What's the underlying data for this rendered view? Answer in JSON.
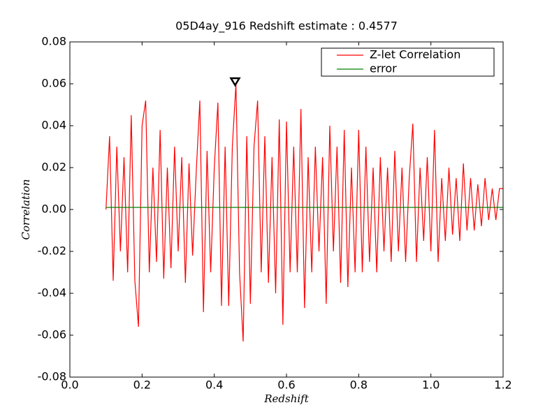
{
  "chart_data": {
    "type": "line",
    "title": "05D4ay_916 Redshift estimate : 0.4577",
    "xlabel": "Redshift",
    "ylabel": "Correlation",
    "xlim": [
      0.0,
      1.2
    ],
    "xticks": [
      {
        "value": 0,
        "label": "0.0"
      },
      0.2,
      0.4,
      0.6,
      0.8,
      {
        "value": 1,
        "label": "1.0"
      },
      1.2
    ],
    "ylim": [
      -0.08,
      0.08
    ],
    "yticks": [
      -0.08,
      -0.06,
      -0.04,
      -0.02,
      {
        "value": 0,
        "label": "0.00"
      },
      0.02,
      0.04,
      0.06,
      0.08
    ],
    "legend": "upper right",
    "series": [
      {
        "name": "Z-let Correlation",
        "color": "#ff0000",
        "x": [
          0.1,
          0.11,
          0.12,
          0.13,
          0.14,
          0.15,
          0.16,
          0.17,
          0.18,
          0.19,
          0.2,
          0.21,
          0.22,
          0.23,
          0.24,
          0.25,
          0.26,
          0.27,
          0.28,
          0.29,
          0.3,
          0.31,
          0.32,
          0.33,
          0.34,
          0.35,
          0.36,
          0.37,
          0.38,
          0.39,
          0.4,
          0.41,
          0.42,
          0.43,
          0.44,
          0.45,
          0.46,
          0.47,
          0.48,
          0.49,
          0.5,
          0.51,
          0.52,
          0.53,
          0.54,
          0.55,
          0.56,
          0.57,
          0.58,
          0.59,
          0.6,
          0.61,
          0.62,
          0.63,
          0.64,
          0.65,
          0.66,
          0.67,
          0.68,
          0.69,
          0.7,
          0.71,
          0.72,
          0.73,
          0.74,
          0.75,
          0.76,
          0.77,
          0.78,
          0.79,
          0.8,
          0.81,
          0.82,
          0.83,
          0.84,
          0.85,
          0.86,
          0.87,
          0.88,
          0.89,
          0.9,
          0.91,
          0.92,
          0.93,
          0.94,
          0.95,
          0.96,
          0.97,
          0.98,
          0.99,
          1.0,
          1.01,
          1.02,
          1.03,
          1.04,
          1.05,
          1.06,
          1.07,
          1.08,
          1.09,
          1.1,
          1.11,
          1.12,
          1.13,
          1.14,
          1.15,
          1.16,
          1.17,
          1.18,
          1.19,
          1.2
        ],
        "values": [
          0.0,
          0.035,
          -0.034,
          0.03,
          -0.02,
          0.025,
          -0.03,
          0.045,
          -0.034,
          -0.056,
          0.04,
          0.052,
          -0.03,
          0.02,
          -0.025,
          0.038,
          -0.033,
          0.02,
          -0.028,
          0.03,
          -0.02,
          0.025,
          -0.035,
          0.022,
          -0.022,
          0.018,
          0.052,
          -0.049,
          0.028,
          -0.03,
          0.02,
          0.051,
          -0.046,
          0.03,
          -0.046,
          0.03,
          0.06,
          -0.03,
          -0.063,
          0.035,
          -0.045,
          0.03,
          0.052,
          -0.03,
          0.035,
          -0.035,
          0.025,
          -0.04,
          0.043,
          -0.055,
          0.042,
          -0.03,
          0.03,
          -0.03,
          0.048,
          -0.047,
          0.025,
          -0.03,
          0.03,
          -0.02,
          0.025,
          -0.045,
          0.04,
          -0.02,
          0.03,
          -0.035,
          0.038,
          -0.037,
          0.02,
          -0.03,
          0.038,
          -0.03,
          0.03,
          -0.025,
          0.02,
          -0.03,
          0.025,
          -0.02,
          0.02,
          -0.025,
          0.028,
          -0.02,
          0.02,
          -0.025,
          0.015,
          0.041,
          -0.025,
          0.02,
          -0.015,
          0.025,
          -0.02,
          0.038,
          -0.025,
          0.015,
          -0.015,
          0.02,
          -0.012,
          0.015,
          -0.015,
          0.022,
          -0.01,
          0.015,
          -0.01,
          0.012,
          -0.008,
          0.015,
          -0.005,
          0.01,
          -0.005,
          0.01,
          0.01
        ]
      },
      {
        "name": "error",
        "color": "#008000",
        "x": [
          0.1,
          1.2
        ],
        "values": [
          0.001,
          0.001
        ]
      }
    ],
    "peak_marker": {
      "x": 0.4577,
      "y": 0.061
    }
  }
}
